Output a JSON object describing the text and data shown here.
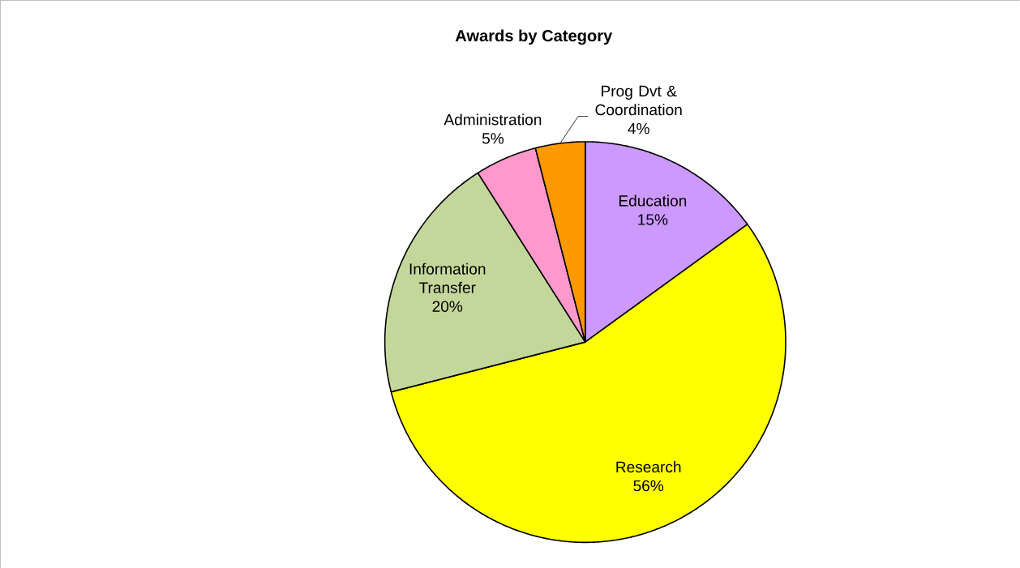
{
  "chart_data": {
    "type": "pie",
    "title": "Awards by Category",
    "categories": [
      "Education",
      "Research",
      "Information Transfer",
      "Administration",
      "Prog Dvt & Coordination"
    ],
    "values": [
      15,
      56,
      20,
      5,
      4
    ],
    "value_labels": [
      "15%",
      "56%",
      "20%",
      "5%",
      "4%"
    ],
    "colors": [
      "#cc99ff",
      "#ffff00",
      "#c4d79b",
      "#ff99cc",
      "#ff9900"
    ]
  }
}
